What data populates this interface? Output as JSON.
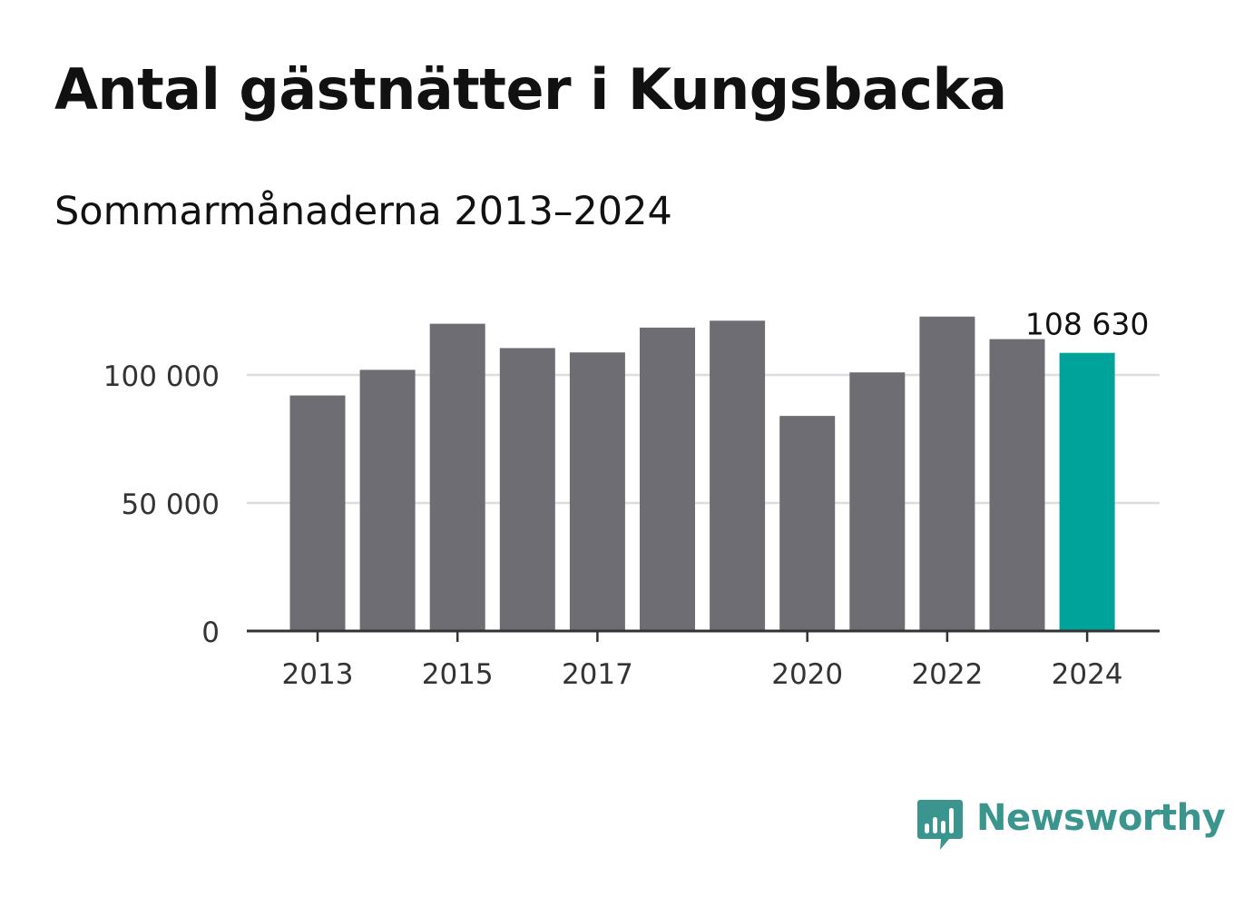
{
  "header": {
    "title": "Antal gästnätter i Kungsbacka",
    "subtitle": "Sommarmånaderna 2013–2024"
  },
  "brand": {
    "name": "Newsworthy",
    "icon": "newsworthy-chart-bubble-icon",
    "color": "#3a958e"
  },
  "colors": {
    "bar": "#6e6d73",
    "highlight": "#00a39a",
    "grid": "#dddddd",
    "axis": "#333333"
  },
  "chart_data": {
    "type": "bar",
    "title": "Antal gästnätter i Kungsbacka",
    "subtitle": "Sommarmånaderna 2013–2024",
    "categories": [
      "2013",
      "2014",
      "2015",
      "2016",
      "2017",
      "2018",
      "2019",
      "2020",
      "2021",
      "2022",
      "2023",
      "2024"
    ],
    "x_tick_labels": [
      "2013",
      "",
      "2015",
      "",
      "2017",
      "",
      "",
      "2020",
      "",
      "2022",
      "",
      "2024"
    ],
    "values": [
      92000,
      102000,
      120000,
      110500,
      108800,
      118500,
      121200,
      84000,
      101000,
      122800,
      114000,
      108630
    ],
    "highlight_index": 11,
    "data_labels": [
      {
        "index": 11,
        "text": "108 630"
      }
    ],
    "y_ticks": [
      0,
      50000,
      100000
    ],
    "y_tick_labels": [
      "0",
      "50 000",
      "100 000"
    ],
    "ylim": [
      0,
      125000
    ],
    "xlabel": "",
    "ylabel": "",
    "grid": true,
    "legend": "none"
  }
}
